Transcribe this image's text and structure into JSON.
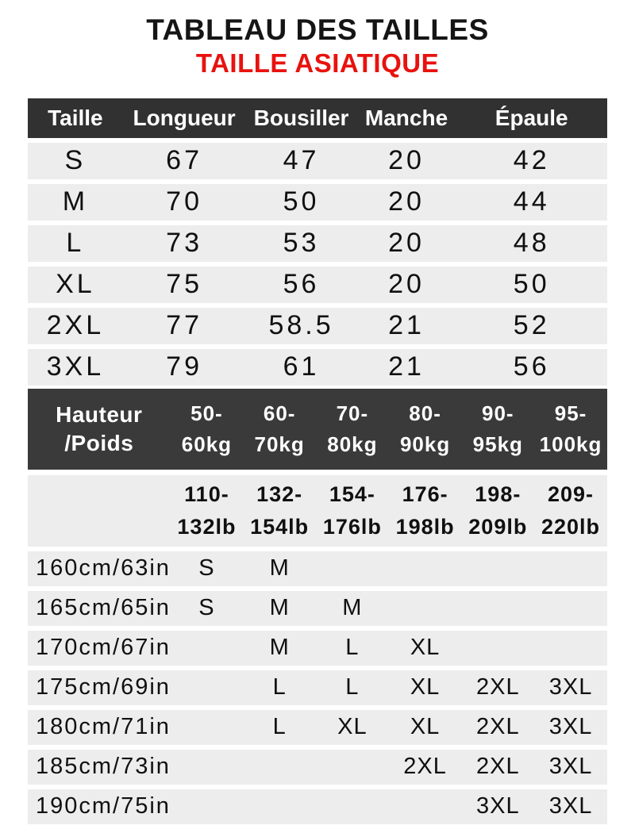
{
  "title": "TABLEAU DES TAILLES",
  "subtitle": "TAILLE ASIATIQUE",
  "colors": {
    "accent_red": "#e8120e",
    "header_dark": "#313131",
    "matrix_header_dark": "#3a3a3a",
    "row_gray": "#ededed"
  },
  "size_table": {
    "headers": [
      "Taille",
      "Longueur",
      "Bousiller",
      "Manche",
      "Épaule"
    ],
    "rows": [
      [
        "S",
        "67",
        "47",
        "20",
        "42"
      ],
      [
        "M",
        "70",
        "50",
        "20",
        "44"
      ],
      [
        "L",
        "73",
        "53",
        "20",
        "48"
      ],
      [
        "XL",
        "75",
        "56",
        "20",
        "50"
      ],
      [
        "2XL",
        "77",
        "58.5",
        "21",
        "52"
      ],
      [
        "3XL",
        "79",
        "61",
        "21",
        "56"
      ]
    ]
  },
  "fit_table": {
    "corner": [
      "Hauteur",
      "/Poids"
    ],
    "kg": [
      [
        "50-",
        "60kg"
      ],
      [
        "60-",
        "70kg"
      ],
      [
        "70-",
        "80kg"
      ],
      [
        "80-",
        "90kg"
      ],
      [
        "90-",
        "95kg"
      ],
      [
        "95-",
        "100kg"
      ]
    ],
    "lb": [
      [
        "110-",
        "132lb"
      ],
      [
        "132-",
        "154lb"
      ],
      [
        "154-",
        "176lb"
      ],
      [
        "176-",
        "198lb"
      ],
      [
        "198-",
        "209lb"
      ],
      [
        "209-",
        "220lb"
      ]
    ],
    "rows": [
      {
        "height": "160cm/63in",
        "cells": [
          "S",
          "M",
          "",
          "",
          "",
          ""
        ]
      },
      {
        "height": "165cm/65in",
        "cells": [
          "S",
          "M",
          "M",
          "",
          "",
          ""
        ]
      },
      {
        "height": "170cm/67in",
        "cells": [
          "",
          "M",
          "L",
          "XL",
          "",
          ""
        ]
      },
      {
        "height": "175cm/69in",
        "cells": [
          "",
          "L",
          "L",
          "XL",
          "2XL",
          "3XL"
        ]
      },
      {
        "height": "180cm/71in",
        "cells": [
          "",
          "L",
          "XL",
          "XL",
          "2XL",
          "3XL"
        ]
      },
      {
        "height": "185cm/73in",
        "cells": [
          "",
          "",
          "",
          "2XL",
          "2XL",
          "3XL"
        ]
      },
      {
        "height": "190cm/75in",
        "cells": [
          "",
          "",
          "",
          "",
          "3XL",
          "3XL"
        ]
      }
    ]
  }
}
